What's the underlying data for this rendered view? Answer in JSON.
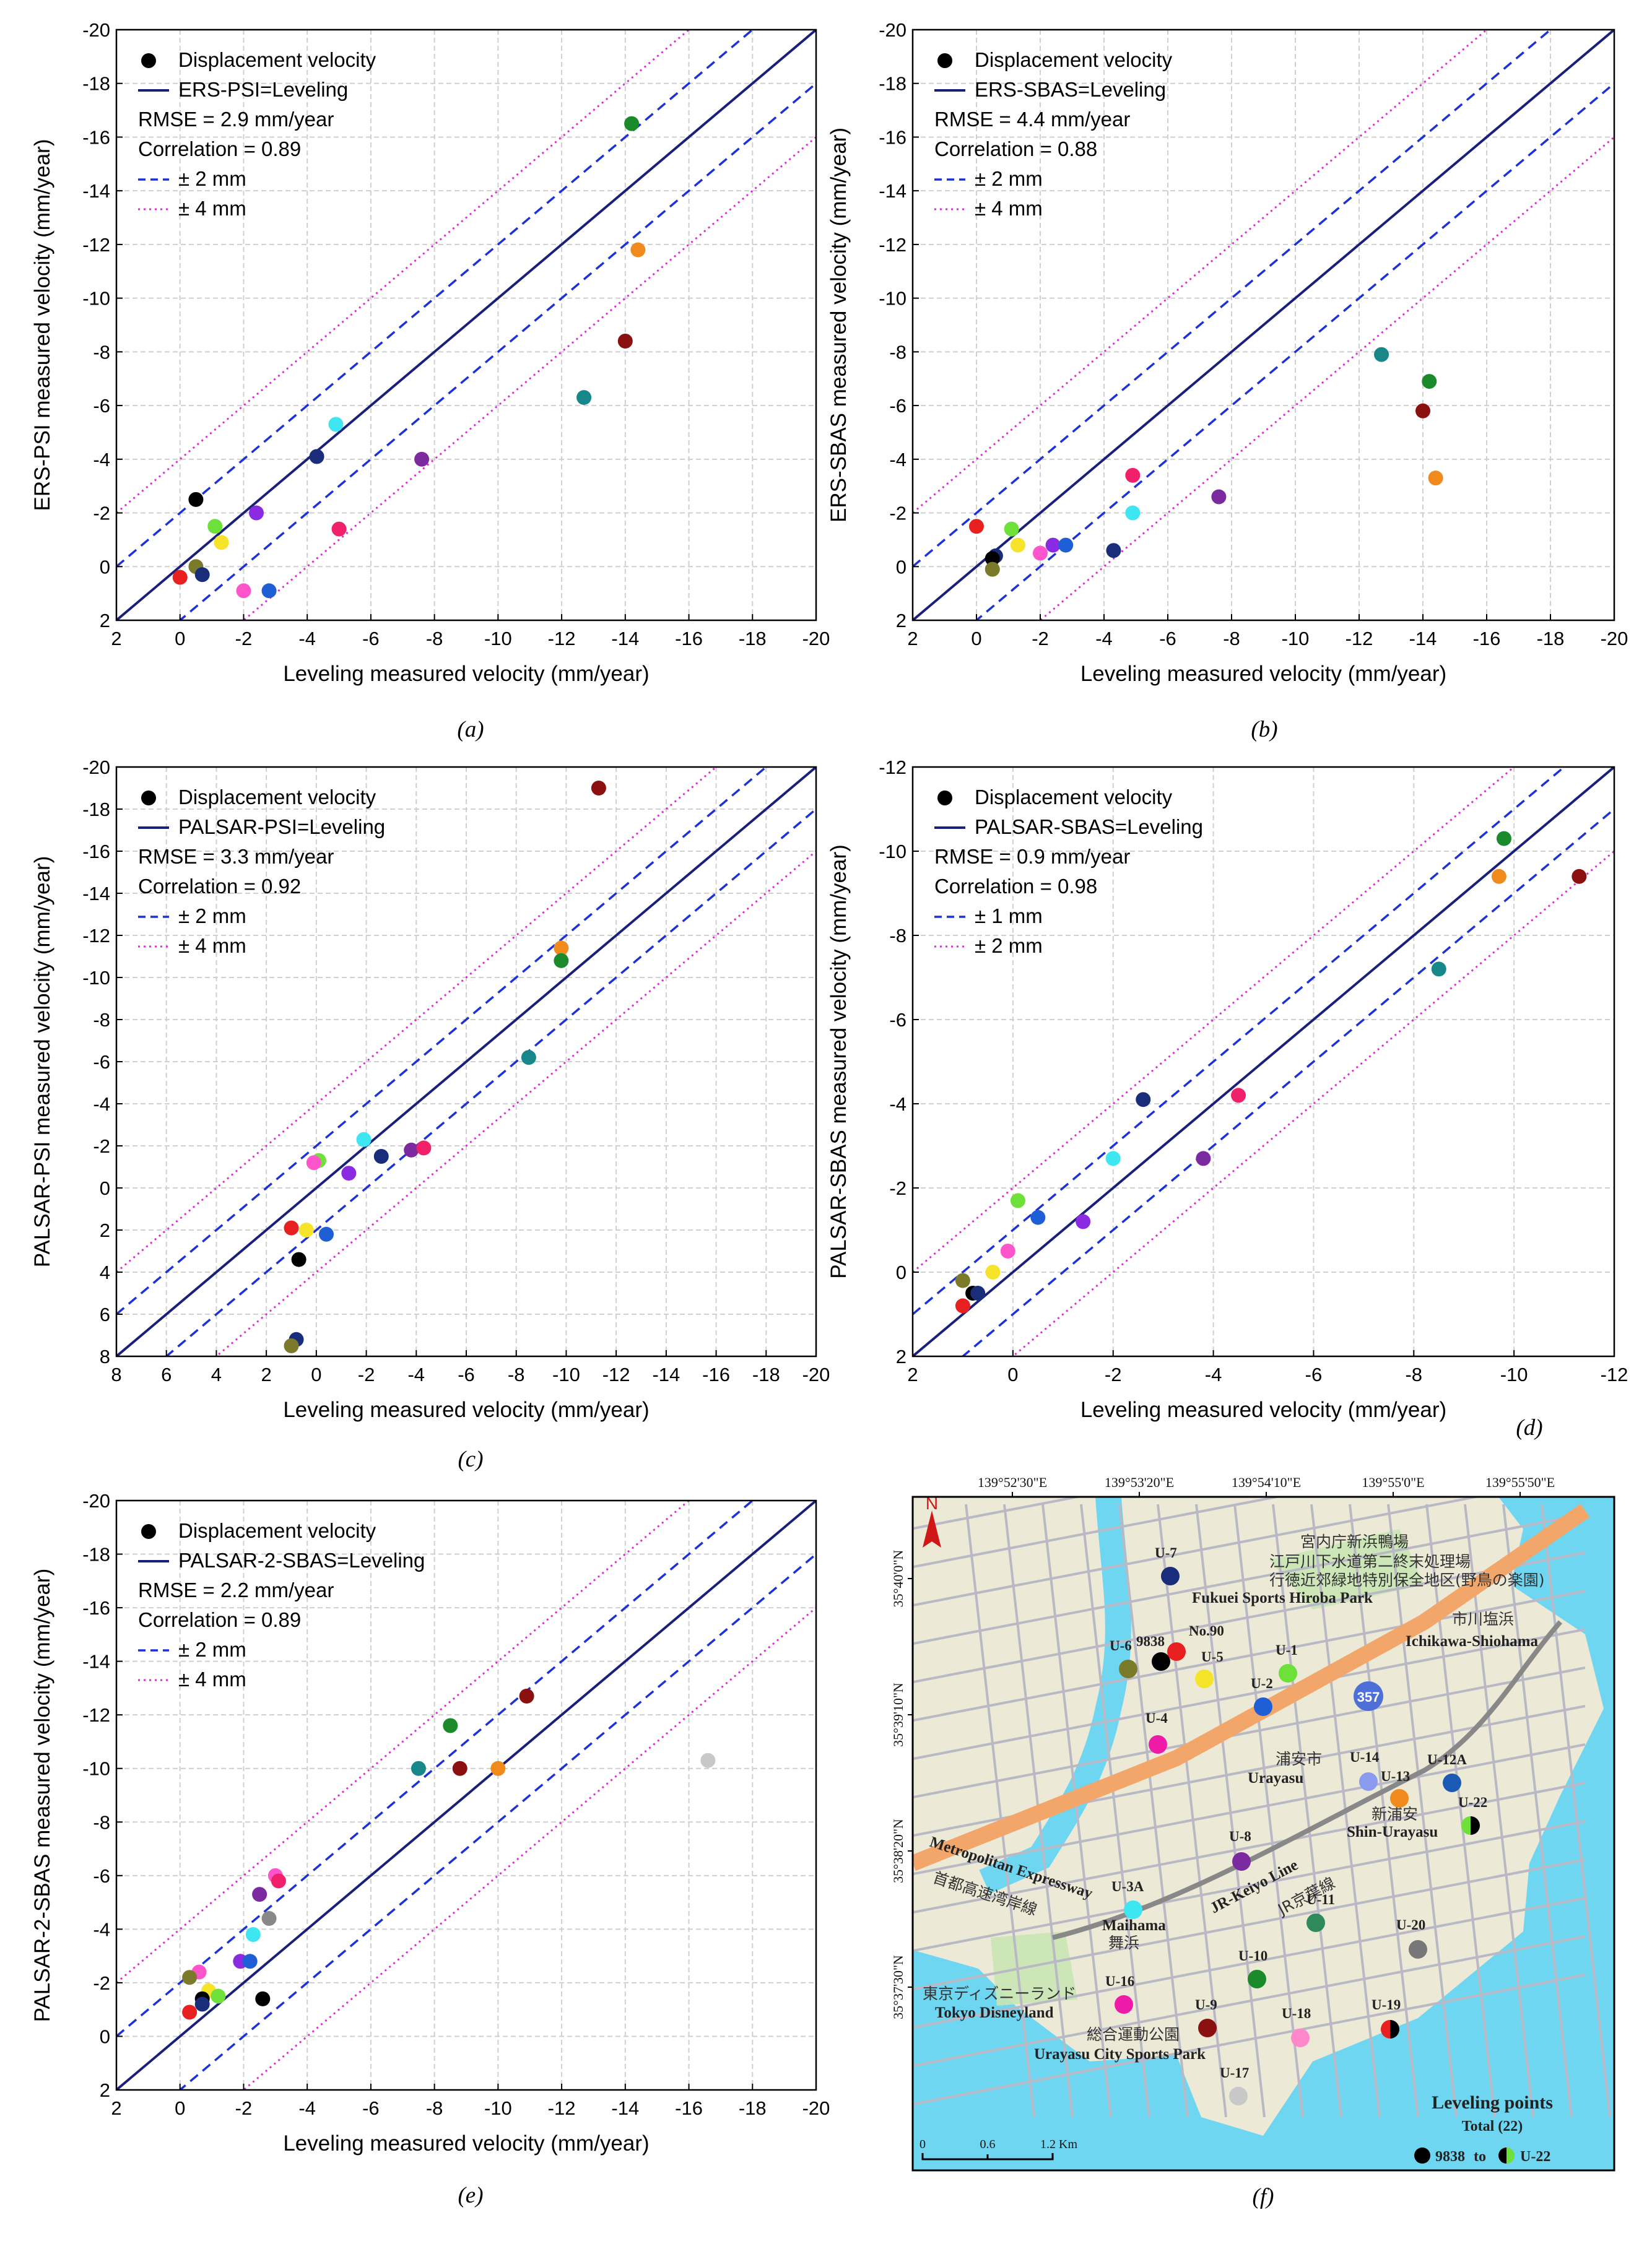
{
  "chart_data": [
    {
      "type": "scatter",
      "id": "a",
      "caption": "(a)",
      "xlabel": "Leveling measured velocity (mm/year)",
      "ylabel": "ERS-PSI measured velocity (mm/year)",
      "xlim": [
        2,
        -20
      ],
      "ylim": [
        2,
        -20
      ],
      "xticks": [
        "2",
        "0",
        "-2",
        "-4",
        "-6",
        "-8",
        "-10",
        "-12",
        "-14",
        "-16",
        "-18",
        "-20"
      ],
      "yticks": [
        "2",
        "0",
        "-2",
        "-4",
        "-6",
        "-8",
        "-10",
        "-12",
        "-14",
        "-16",
        "-18",
        "-20"
      ],
      "legend": {
        "marker": "Displacement velocity",
        "line": "ERS-PSI=Leveling",
        "rmse": "RMSE = 2.9 mm/year",
        "corr": "Correlation = 0.89",
        "band1": "± 2 mm",
        "band2": "± 4 mm"
      },
      "band1": 2,
      "band2": 4,
      "points": [
        {
          "x": -14.2,
          "y": -16.5,
          "c": "#1a8a2a"
        },
        {
          "x": -14.4,
          "y": -11.8,
          "c": "#f08a1c"
        },
        {
          "x": -14.0,
          "y": -8.4,
          "c": "#8b1010"
        },
        {
          "x": -12.7,
          "y": -6.3,
          "c": "#17878a"
        },
        {
          "x": -4.9,
          "y": -5.3,
          "c": "#3ee6f2"
        },
        {
          "x": -4.3,
          "y": -4.1,
          "c": "#1a2d7a"
        },
        {
          "x": -7.6,
          "y": -4.0,
          "c": "#7b2aa0"
        },
        {
          "x": -0.5,
          "y": -2.5,
          "c": "#000000"
        },
        {
          "x": -2.4,
          "y": -2.0,
          "c": "#8a2be2"
        },
        {
          "x": -1.1,
          "y": -1.5,
          "c": "#6ee03a"
        },
        {
          "x": -5.0,
          "y": -1.4,
          "c": "#f0206a"
        },
        {
          "x": -1.3,
          "y": -0.9,
          "c": "#f5e42a"
        },
        {
          "x": -0.5,
          "y": 0.0,
          "c": "#7a7a2a"
        },
        {
          "x": 0.0,
          "y": 0.4,
          "c": "#e82020"
        },
        {
          "x": -0.7,
          "y": 0.3,
          "c": "#1a2d7a"
        },
        {
          "x": -2.0,
          "y": 0.9,
          "c": "#ff55cc"
        },
        {
          "x": -2.8,
          "y": 0.9,
          "c": "#1f5fd6"
        }
      ]
    },
    {
      "type": "scatter",
      "id": "b",
      "caption": "(b)",
      "xlabel": "Leveling measured velocity (mm/year)",
      "ylabel": "ERS-SBAS measured velocity (mm/year)",
      "xlim": [
        2,
        -20
      ],
      "ylim": [
        2,
        -20
      ],
      "xticks": [
        "2",
        "0",
        "-2",
        "-4",
        "-6",
        "-8",
        "-10",
        "-12",
        "-14",
        "-16",
        "-18",
        "-20"
      ],
      "yticks": [
        "2",
        "0",
        "-2",
        "-4",
        "-6",
        "-8",
        "-10",
        "-12",
        "-14",
        "-16",
        "-18",
        "-20"
      ],
      "legend": {
        "marker": "Displacement velocity",
        "line": "ERS-SBAS=Leveling",
        "rmse": "RMSE = 4.4 mm/year",
        "corr": "Correlation = 0.88",
        "band1": "± 2 mm",
        "band2": "± 4 mm"
      },
      "band1": 2,
      "band2": 4,
      "points": [
        {
          "x": -12.7,
          "y": -7.9,
          "c": "#17878a"
        },
        {
          "x": -14.2,
          "y": -6.9,
          "c": "#1a8a2a"
        },
        {
          "x": -14.0,
          "y": -5.8,
          "c": "#8b1010"
        },
        {
          "x": -14.4,
          "y": -3.3,
          "c": "#f08a1c"
        },
        {
          "x": -4.9,
          "y": -3.4,
          "c": "#f0206a"
        },
        {
          "x": -7.6,
          "y": -2.6,
          "c": "#7b2aa0"
        },
        {
          "x": -4.9,
          "y": -2.0,
          "c": "#3ee6f2"
        },
        {
          "x": 0.0,
          "y": -1.5,
          "c": "#e82020"
        },
        {
          "x": -1.1,
          "y": -1.4,
          "c": "#6ee03a"
        },
        {
          "x": -1.3,
          "y": -0.8,
          "c": "#f5e42a"
        },
        {
          "x": -2.4,
          "y": -0.8,
          "c": "#8a2be2"
        },
        {
          "x": -2.8,
          "y": -0.8,
          "c": "#1f5fd6"
        },
        {
          "x": -4.3,
          "y": -0.6,
          "c": "#1a2d7a"
        },
        {
          "x": -2.0,
          "y": -0.5,
          "c": "#ff55cc"
        },
        {
          "x": -0.6,
          "y": -0.4,
          "c": "#1a2d7a"
        },
        {
          "x": -0.5,
          "y": -0.3,
          "c": "#000000"
        },
        {
          "x": -0.5,
          "y": 0.1,
          "c": "#7a7a2a"
        }
      ]
    },
    {
      "type": "scatter",
      "id": "c",
      "caption": "(c)",
      "xlabel": "Leveling measured velocity (mm/year)",
      "ylabel": "PALSAR-PSI measured velocity (mm/year)",
      "xlim": [
        8,
        -20
      ],
      "ylim": [
        8,
        -20
      ],
      "xticks": [
        "8",
        "6",
        "4",
        "2",
        "0",
        "-2",
        "-4",
        "-6",
        "-8",
        "-10",
        "-12",
        "-14",
        "-16",
        "-18",
        "-20"
      ],
      "yticks": [
        "8",
        "6",
        "4",
        "2",
        "0",
        "-2",
        "-4",
        "-6",
        "-8",
        "-10",
        "-12",
        "-14",
        "-16",
        "-18",
        "-20"
      ],
      "legend": {
        "marker": "Displacement velocity",
        "line": "PALSAR-PSI=Leveling",
        "rmse": "RMSE = 3.3 mm/year",
        "corr": "Correlation = 0.92",
        "band1": "± 2 mm",
        "band2": "± 4 mm"
      },
      "band1": 2,
      "band2": 4,
      "points": [
        {
          "x": -11.3,
          "y": -19.0,
          "c": "#8b1010"
        },
        {
          "x": -9.8,
          "y": -11.4,
          "c": "#f08a1c"
        },
        {
          "x": -9.8,
          "y": -10.8,
          "c": "#1a8a2a"
        },
        {
          "x": -8.5,
          "y": -6.2,
          "c": "#17878a"
        },
        {
          "x": -1.9,
          "y": -2.3,
          "c": "#3ee6f2"
        },
        {
          "x": -2.6,
          "y": -1.5,
          "c": "#1a2d7a"
        },
        {
          "x": -3.8,
          "y": -1.8,
          "c": "#7b2aa0"
        },
        {
          "x": -4.3,
          "y": -1.9,
          "c": "#f0206a"
        },
        {
          "x": -0.1,
          "y": -1.3,
          "c": "#6ee03a"
        },
        {
          "x": 0.1,
          "y": -1.2,
          "c": "#ff55cc"
        },
        {
          "x": -1.3,
          "y": -0.7,
          "c": "#8a2be2"
        },
        {
          "x": 1.0,
          "y": 1.9,
          "c": "#e82020"
        },
        {
          "x": 0.4,
          "y": 2.0,
          "c": "#f5e42a"
        },
        {
          "x": -0.4,
          "y": 2.2,
          "c": "#1f5fd6"
        },
        {
          "x": 0.7,
          "y": 3.4,
          "c": "#000000"
        },
        {
          "x": 0.8,
          "y": 7.2,
          "c": "#1a2d7a"
        },
        {
          "x": 1.0,
          "y": 7.5,
          "c": "#7a7a2a"
        }
      ]
    },
    {
      "type": "scatter",
      "id": "d",
      "caption": "(d)",
      "xlabel": "Leveling measured velocity (mm/year)",
      "ylabel": "PALSAR-SBAS measured velocity (mm/year)",
      "xlim": [
        2,
        -12
      ],
      "ylim": [
        2,
        -12
      ],
      "xticks": [
        "2",
        "0",
        "-2",
        "-4",
        "-6",
        "-8",
        "-10",
        "-12"
      ],
      "yticks": [
        "2",
        "0",
        "-2",
        "-4",
        "-6",
        "-8",
        "-10",
        "-12"
      ],
      "legend": {
        "marker": "Displacement velocity",
        "line": "PALSAR-SBAS=Leveling",
        "rmse": "RMSE = 0.9 mm/year",
        "corr": "Correlation = 0.98",
        "band1": "± 1 mm",
        "band2": "± 2 mm"
      },
      "band1": 1,
      "band2": 2,
      "points": [
        {
          "x": -9.8,
          "y": -10.3,
          "c": "#1a8a2a"
        },
        {
          "x": -9.7,
          "y": -9.4,
          "c": "#f08a1c"
        },
        {
          "x": -11.3,
          "y": -9.4,
          "c": "#8b1010"
        },
        {
          "x": -8.5,
          "y": -7.2,
          "c": "#17878a"
        },
        {
          "x": -4.5,
          "y": -4.2,
          "c": "#f0206a"
        },
        {
          "x": -2.6,
          "y": -4.1,
          "c": "#1a2d7a"
        },
        {
          "x": -2.0,
          "y": -2.7,
          "c": "#3ee6f2"
        },
        {
          "x": -3.8,
          "y": -2.7,
          "c": "#7b2aa0"
        },
        {
          "x": -0.1,
          "y": -1.7,
          "c": "#6ee03a"
        },
        {
          "x": -0.5,
          "y": -1.3,
          "c": "#1f5fd6"
        },
        {
          "x": -1.4,
          "y": -1.2,
          "c": "#8a2be2"
        },
        {
          "x": 0.1,
          "y": -0.5,
          "c": "#ff55cc"
        },
        {
          "x": 0.4,
          "y": 0.0,
          "c": "#f5e42a"
        },
        {
          "x": 1.0,
          "y": 0.2,
          "c": "#7a7a2a"
        },
        {
          "x": 0.8,
          "y": 0.5,
          "c": "#000000"
        },
        {
          "x": 0.7,
          "y": 0.5,
          "c": "#1a2d7a"
        },
        {
          "x": 1.0,
          "y": 0.8,
          "c": "#e82020"
        }
      ]
    },
    {
      "type": "scatter",
      "id": "e",
      "caption": "(e)",
      "xlabel": "Leveling measured velocity (mm/year)",
      "ylabel": "PALSAR-2-SBAS measured velocity (mm/year)",
      "xlim": [
        2,
        -20
      ],
      "ylim": [
        2,
        -20
      ],
      "xticks": [
        "2",
        "0",
        "-2",
        "-4",
        "-6",
        "-8",
        "-10",
        "-12",
        "-14",
        "-16",
        "-18",
        "-20"
      ],
      "yticks": [
        "2",
        "0",
        "-2",
        "-4",
        "-6",
        "-8",
        "-10",
        "-12",
        "-14",
        "-16",
        "-18",
        "-20"
      ],
      "legend": {
        "marker": "Displacement velocity",
        "line": "PALSAR-2-SBAS=Leveling",
        "rmse": "RMSE = 2.2 mm/year",
        "corr": "Correlation = 0.89",
        "band1": "± 2 mm",
        "band2": "± 4 mm"
      },
      "band1": 2,
      "band2": 4,
      "points": [
        {
          "x": -10.9,
          "y": -12.7,
          "c": "#8b1010"
        },
        {
          "x": -8.5,
          "y": -11.6,
          "c": "#1a8a2a"
        },
        {
          "x": -16.6,
          "y": -10.3,
          "c": "#c8c8c8"
        },
        {
          "x": -7.5,
          "y": -10.0,
          "c": "#17878a"
        },
        {
          "x": -8.8,
          "y": -10.0,
          "c": "#8b1010"
        },
        {
          "x": -10.0,
          "y": -10.0,
          "c": "#f08a1c"
        },
        {
          "x": -3.0,
          "y": -6.0,
          "c": "#ff55cc"
        },
        {
          "x": -3.1,
          "y": -5.8,
          "c": "#f0206a"
        },
        {
          "x": -2.5,
          "y": -5.3,
          "c": "#7b2aa0"
        },
        {
          "x": -2.8,
          "y": -4.4,
          "c": "#888888"
        },
        {
          "x": -2.3,
          "y": -3.8,
          "c": "#3ee6f2"
        },
        {
          "x": -1.9,
          "y": -2.8,
          "c": "#8a2be2"
        },
        {
          "x": -2.2,
          "y": -2.8,
          "c": "#1f5fd6"
        },
        {
          "x": -0.6,
          "y": -2.4,
          "c": "#ff55cc"
        },
        {
          "x": -0.3,
          "y": -2.2,
          "c": "#7a7a2a"
        },
        {
          "x": -0.9,
          "y": -1.7,
          "c": "#f5e42a"
        },
        {
          "x": -1.2,
          "y": -1.5,
          "c": "#6ee03a"
        },
        {
          "x": -2.6,
          "y": -1.4,
          "c": "#000000"
        },
        {
          "x": -0.7,
          "y": -1.4,
          "c": "#000000"
        },
        {
          "x": -0.7,
          "y": -1.2,
          "c": "#1a2d7a"
        },
        {
          "x": -0.3,
          "y": -0.9,
          "c": "#e82020"
        }
      ]
    }
  ],
  "map": {
    "caption": "(f)",
    "lon_ticks": [
      "139°52'30\"E",
      "139°53'20\"E",
      "139°54'10\"E",
      "139°55'0\"E",
      "139°55'50\"E"
    ],
    "lat_ticks": [
      "35°40'0\"N",
      "35°39'10\"N",
      "35°38'20\"N",
      "35°37'30\"N"
    ],
    "north": "N",
    "legend_title": "Leveling points",
    "legend_total": "Total (22)",
    "legend_from": "9838",
    "legend_to_word": "to",
    "legend_to": "U-22",
    "scale_labels": [
      "0",
      "0.6",
      "1.2 Km"
    ],
    "route_shield": "357",
    "labels": [
      {
        "t": "宮内庁新浜鴨場",
        "k": "jp"
      },
      {
        "t": "江戸川下水道第二終末処理場",
        "k": "jp"
      },
      {
        "t": "行徳近郊緑地特別保全地区(野鳥の楽園)",
        "k": "jp"
      },
      {
        "t": "Fukuei Sports Hiroba Park",
        "k": "en"
      },
      {
        "t": "市川塩浜",
        "k": "jp"
      },
      {
        "t": "Ichikawa-Shiohama",
        "k": "en"
      },
      {
        "t": "浦安市",
        "k": "jp"
      },
      {
        "t": "Urayasu",
        "k": "en"
      },
      {
        "t": "新浦安",
        "k": "jp"
      },
      {
        "t": "Shin-Urayasu",
        "k": "en"
      },
      {
        "t": "JR-Keiyo Line",
        "k": "en"
      },
      {
        "t": "JR京葉線",
        "k": "jp"
      },
      {
        "t": "Metropolitan Expressway",
        "k": "en"
      },
      {
        "t": "首都高速湾岸線",
        "k": "jp"
      },
      {
        "t": "Maihama",
        "k": "en"
      },
      {
        "t": "舞浜",
        "k": "jp"
      },
      {
        "t": "東京ディズニーランド",
        "k": "jp"
      },
      {
        "t": "Tokyo Disneyland",
        "k": "en"
      },
      {
        "t": "総合運動公園",
        "k": "jp"
      },
      {
        "t": "Urayasu City Sports Park",
        "k": "en"
      }
    ],
    "points": [
      {
        "n": "U-7",
        "c": "#1a2d7a"
      },
      {
        "n": "9838",
        "c": "#000000"
      },
      {
        "n": "No.90",
        "c": "#e82020"
      },
      {
        "n": "U-6",
        "c": "#7a7a2a"
      },
      {
        "n": "U-5",
        "c": "#f5e42a"
      },
      {
        "n": "U-1",
        "c": "#6ee03a"
      },
      {
        "n": "U-2",
        "c": "#1f5fd6"
      },
      {
        "n": "U-4",
        "c": "#f01aa8"
      },
      {
        "n": "U-14",
        "c": "#8a9aee"
      },
      {
        "n": "U-12A",
        "c": "#1a5ab4"
      },
      {
        "n": "U-13",
        "c": "#f08a1c"
      },
      {
        "n": "U-22",
        "c": "#000000"
      },
      {
        "n": "U-8",
        "c": "#7b2aa0"
      },
      {
        "n": "U-3A",
        "c": "#3ee6f2"
      },
      {
        "n": "U-11",
        "c": "#2e8a5a"
      },
      {
        "n": "U-20",
        "c": "#777777"
      },
      {
        "n": "U-10",
        "c": "#1a8a2a"
      },
      {
        "n": "U-16",
        "c": "#f01aa8"
      },
      {
        "n": "U-9",
        "c": "#8b1010"
      },
      {
        "n": "U-18",
        "c": "#ff88cc"
      },
      {
        "n": "U-19",
        "c": "#e82020"
      },
      {
        "n": "U-17",
        "c": "#c8c8c8"
      }
    ]
  }
}
